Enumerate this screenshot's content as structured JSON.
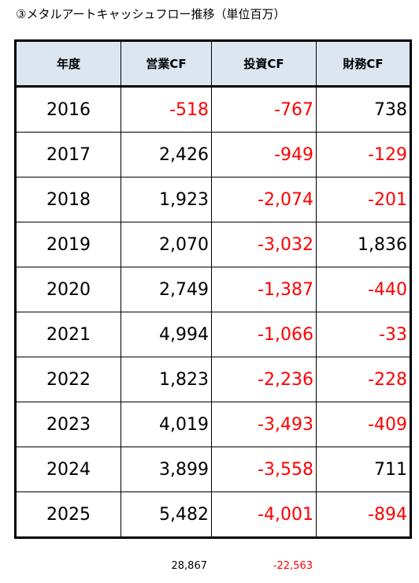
{
  "title": "③メタルアートキャッシュフロー推移（単位百万）",
  "table": {
    "header": [
      "年度",
      "営業CF",
      "投資CF",
      "財務CF"
    ],
    "rows": [
      [
        "2016",
        "-518",
        "-767",
        "738"
      ],
      [
        "2017",
        "2,426",
        "-949",
        "-129"
      ],
      [
        "2018",
        "1,923",
        "-2,074",
        "-201"
      ],
      [
        "2019",
        "2,070",
        "-3,032",
        "1,836"
      ],
      [
        "2020",
        "2,749",
        "-1,387",
        "-440"
      ],
      [
        "2021",
        "4,994",
        "-1,066",
        "-33"
      ],
      [
        "2022",
        "1,823",
        "-2,236",
        "-228"
      ],
      [
        "2023",
        "4,019",
        "-3,493",
        "-409"
      ],
      [
        "2024",
        "3,899",
        "-3,558",
        "711"
      ],
      [
        "2025",
        "5,482",
        "-4,001",
        "-894"
      ]
    ]
  },
  "totals": [
    "28,867",
    "-22,563"
  ]
}
